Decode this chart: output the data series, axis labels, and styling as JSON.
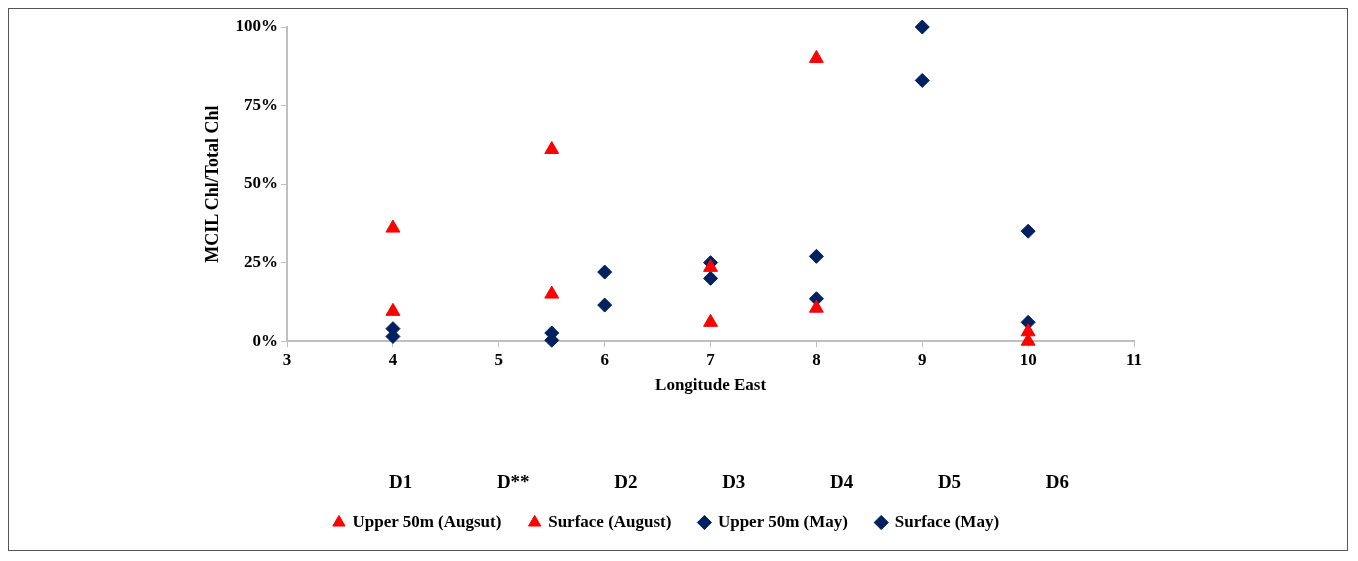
{
  "chart_data": {
    "type": "scatter",
    "xlabel": "Longitude East",
    "ylabel": "MCIL Chl/Total Chl",
    "xlim": [
      3,
      11
    ],
    "xticks": [
      3,
      4,
      5,
      6,
      7,
      8,
      9,
      10,
      11
    ],
    "ylim": [
      0,
      100
    ],
    "yticks": [
      {
        "value": 0,
        "label": "0%"
      },
      {
        "value": 25,
        "label": "25%"
      },
      {
        "value": 50,
        "label": "50%"
      },
      {
        "value": 75,
        "label": "75%"
      },
      {
        "value": 100,
        "label": "100%"
      }
    ],
    "grid": false,
    "legend": "bottom",
    "series": [
      {
        "name": "Surface (May)",
        "color": "#002060",
        "marker": "diamond",
        "x": [
          4,
          5.5,
          6,
          7,
          8,
          9,
          10
        ],
        "values": [
          4,
          2.6,
          22,
          20,
          27,
          100,
          35
        ]
      },
      {
        "name": "Upper 50m (May)",
        "color": "#002060",
        "marker": "diamond",
        "x": [
          4,
          5.5,
          6,
          7,
          8,
          9,
          10
        ],
        "values": [
          1.5,
          0.3,
          11.5,
          25,
          13.5,
          83,
          6
        ]
      },
      {
        "name": "Surface (August)",
        "color": "#ff0000",
        "marker": "triangle",
        "x": [
          4,
          5.5,
          7,
          8,
          10
        ],
        "values": [
          36,
          61,
          23.5,
          90,
          0
        ]
      },
      {
        "name": "Upper 50m (Augsut)",
        "color": "#ff0000",
        "marker": "triangle",
        "x": [
          4,
          5.5,
          7,
          8,
          10
        ],
        "values": [
          9.5,
          15,
          6,
          10.5,
          3
        ]
      }
    ],
    "annotations": [
      "D1",
      "D**",
      "D2",
      "D3",
      "D4",
      "D5",
      "D6"
    ]
  }
}
